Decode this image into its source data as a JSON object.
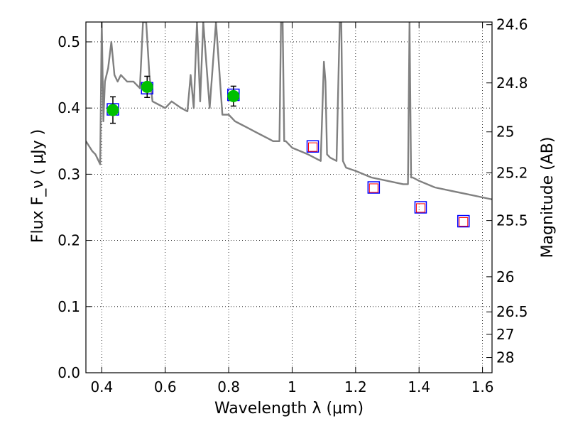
{
  "chart_data": {
    "type": "scatter",
    "xlabel": "Wavelength  λ (μm)",
    "ylabel": "Flux  F_ν  ( μJy )",
    "ylabel_right": "Magnitude (AB)",
    "xlim": [
      0.35,
      1.63
    ],
    "ylim": [
      0.0,
      0.53
    ],
    "grid": true,
    "x_ticks": [
      0.4,
      0.6,
      0.8,
      1.0,
      1.2,
      1.4,
      1.6
    ],
    "x_tick_labels": [
      "0.4",
      "0.6",
      "0.8",
      "1",
      "1.2",
      "1.4",
      "1.6"
    ],
    "y_ticks": [
      0.0,
      0.1,
      0.2,
      0.3,
      0.4,
      0.5
    ],
    "y_tick_labels": [
      "0.0",
      "0.1",
      "0.2",
      "0.3",
      "0.4",
      "0.5"
    ],
    "right_ticks": [
      {
        "label": "24.6",
        "flux": 0.526
      },
      {
        "label": "24.8",
        "flux": 0.438
      },
      {
        "label": "25",
        "flux": 0.364
      },
      {
        "label": "25.2",
        "flux": 0.302
      },
      {
        "label": "25.5",
        "flux": 0.23
      },
      {
        "label": "26",
        "flux": 0.145
      },
      {
        "label": "26.5",
        "flux": 0.092
      },
      {
        "label": "27",
        "flux": 0.058
      },
      {
        "label": "28",
        "flux": 0.023
      }
    ],
    "series": [
      {
        "kind": "sed_model",
        "color": "#808080",
        "x": [
          0.35,
          0.37,
          0.38,
          0.39,
          0.395,
          0.4,
          0.405,
          0.41,
          0.42,
          0.43,
          0.44,
          0.45,
          0.46,
          0.48,
          0.5,
          0.52,
          0.53,
          0.54,
          0.55,
          0.56,
          0.58,
          0.6,
          0.62,
          0.65,
          0.67,
          0.68,
          0.69,
          0.7,
          0.71,
          0.72,
          0.74,
          0.76,
          0.78,
          0.8,
          0.82,
          0.84,
          0.86,
          0.88,
          0.9,
          0.92,
          0.94,
          0.96,
          0.965,
          0.97,
          0.975,
          0.98,
          1.0,
          1.05,
          1.09,
          1.1,
          1.105,
          1.11,
          1.12,
          1.14,
          1.15,
          1.155,
          1.16,
          1.17,
          1.2,
          1.25,
          1.3,
          1.35,
          1.365,
          1.37,
          1.375,
          1.38,
          1.4,
          1.45,
          1.5,
          1.55,
          1.6,
          1.63
        ],
        "y": [
          0.35,
          0.335,
          0.33,
          0.32,
          0.315,
          0.53,
          0.38,
          0.44,
          0.46,
          0.5,
          0.45,
          0.44,
          0.45,
          0.44,
          0.44,
          0.43,
          0.53,
          0.53,
          0.45,
          0.41,
          0.405,
          0.4,
          0.41,
          0.4,
          0.395,
          0.45,
          0.4,
          0.53,
          0.41,
          0.53,
          0.4,
          0.53,
          0.39,
          0.39,
          0.38,
          0.375,
          0.37,
          0.365,
          0.36,
          0.355,
          0.35,
          0.35,
          0.53,
          0.53,
          0.35,
          0.35,
          0.34,
          0.33,
          0.32,
          0.47,
          0.44,
          0.33,
          0.325,
          0.32,
          0.53,
          0.53,
          0.32,
          0.31,
          0.305,
          0.295,
          0.29,
          0.285,
          0.285,
          0.53,
          0.295,
          0.295,
          0.29,
          0.28,
          0.275,
          0.27,
          0.265,
          0.262
        ]
      },
      {
        "kind": "model_boxes",
        "color": "#0000ff",
        "x": [
          0.435,
          0.543,
          0.815,
          1.065,
          1.257,
          1.405,
          1.54
        ],
        "y": [
          0.398,
          0.43,
          0.42,
          0.342,
          0.28,
          0.25,
          0.229
        ]
      },
      {
        "kind": "detections",
        "color": "#00c000",
        "x": [
          0.435,
          0.543,
          0.815
        ],
        "y": [
          0.397,
          0.432,
          0.418
        ],
        "yerr": [
          0.02,
          0.016,
          0.015
        ]
      },
      {
        "kind": "upper_limits",
        "color": "#ff0000",
        "x": [
          1.065,
          1.257,
          1.405,
          1.54
        ],
        "y": [
          0.341,
          0.279,
          0.249,
          0.228
        ]
      }
    ]
  }
}
